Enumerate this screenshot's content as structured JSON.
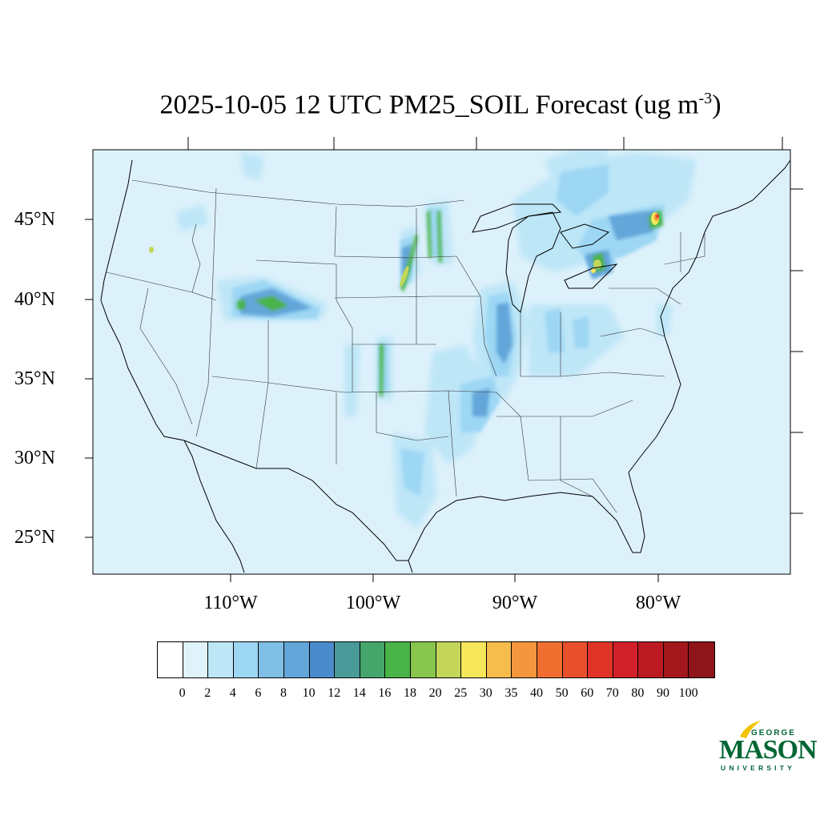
{
  "title": {
    "main": "2025-10-05 12 UTC PM25_SOIL Forecast (ug m",
    "superscript": "-3",
    "close": ")"
  },
  "axes": {
    "lat_labels": [
      "45°N",
      "40°N",
      "35°N",
      "30°N",
      "25°N"
    ],
    "lon_labels": [
      "110°W",
      "100°W",
      "90°W",
      "80°W"
    ]
  },
  "colorbar": {
    "labels": [
      "0",
      "2",
      "4",
      "6",
      "8",
      "10",
      "12",
      "14",
      "16",
      "18",
      "20",
      "25",
      "30",
      "35",
      "40",
      "50",
      "60",
      "70",
      "80",
      "90",
      "100"
    ],
    "colors": [
      "#ffffff",
      "#e0f3fb",
      "#bde6f7",
      "#9dd7f4",
      "#7fbfe6",
      "#63a6da",
      "#4a8ccb",
      "#4a9a9a",
      "#46a56a",
      "#49b447",
      "#88c54e",
      "#c3d65a",
      "#f6e65a",
      "#f6bd4c",
      "#f4963d",
      "#f06e30",
      "#e8502c",
      "#e03428",
      "#d2202a",
      "#bb1a22",
      "#a4171c",
      "#8e1519"
    ]
  },
  "map": {
    "background_color": "#ddf1fb",
    "land_color": "#e0f3fb"
  },
  "logo": {
    "line1": "GEORGE",
    "line2": "MASON",
    "line3": "UNIVERSITY",
    "color": "#006633",
    "accent_color": "#f2c300"
  }
}
